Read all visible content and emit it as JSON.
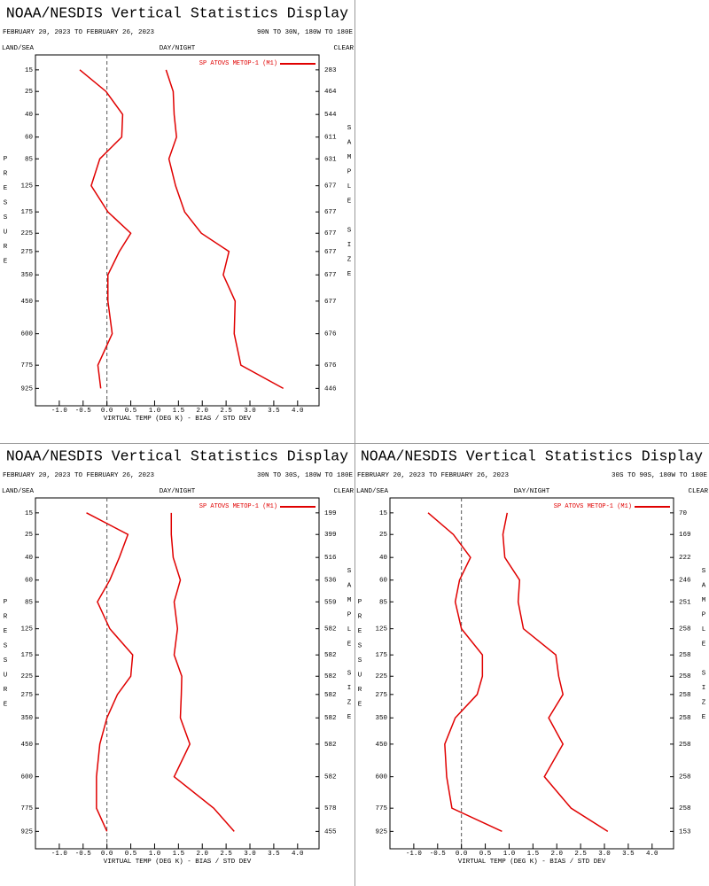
{
  "chart_data": [
    {
      "type": "line",
      "title": "NOAA/NESDIS Vertical Statistics Display",
      "date_range": "FEBRUARY 20, 2023 TO FEBRUARY 26, 2023",
      "region": "90N TO 30N, 180W TO 180E",
      "land_sea": "LAND/SEA",
      "day_night": "DAY/NIGHT",
      "sky": "CLEAR",
      "ylabel": "PRESSURE",
      "y2label": "SAMPLE SIZE",
      "xlabel": "VIRTUAL TEMP (DEG K) - BIAS / STD DEV",
      "y": [
        15,
        25,
        40,
        60,
        85,
        125,
        175,
        225,
        275,
        350,
        450,
        600,
        775,
        925
      ],
      "sample_size": [
        283,
        464,
        544,
        611,
        631,
        677,
        677,
        677,
        677,
        677,
        677,
        676,
        676,
        446
      ],
      "series": [
        {
          "name": "SP ATOVS METOP-1 (M1)",
          "color": "#e00000",
          "bias": [
            -0.57,
            -0.02,
            0.33,
            0.31,
            -0.15,
            -0.33,
            0.02,
            0.5,
            0.26,
            0.02,
            0.02,
            0.11,
            -0.19,
            -0.13
          ],
          "std_dev": [
            1.24,
            1.39,
            1.41,
            1.46,
            1.3,
            1.44,
            1.63,
            1.98,
            2.56,
            2.44,
            2.69,
            2.67,
            2.81,
            3.7
          ]
        }
      ],
      "xlim": [
        -1.5,
        4.45
      ],
      "xticks": [
        {
          "value": -1,
          "label": "-1.0"
        },
        -0.5,
        {
          "value": 0,
          "label": "0.0"
        },
        0.5,
        {
          "value": 1,
          "label": "1.0"
        },
        1.5,
        {
          "value": 2,
          "label": "2.0"
        },
        2.5,
        {
          "value": 3,
          "label": "3.0"
        },
        3.5,
        {
          "value": 4,
          "label": "4.0"
        }
      ],
      "ylim": [
        10,
        1050
      ],
      "yscale": "power",
      "yexponent": 0.3,
      "y_inverted": true
    },
    {
      "type": "line",
      "title": "NOAA/NESDIS Vertical Statistics Display",
      "date_range": "FEBRUARY 20, 2023 TO FEBRUARY 26, 2023",
      "region": "30N TO 30S, 180W TO 180E",
      "land_sea": "LAND/SEA",
      "day_night": "DAY/NIGHT",
      "sky": "CLEAR",
      "ylabel": "PRESSURE",
      "y2label": "SAMPLE SIZE",
      "xlabel": "VIRTUAL TEMP (DEG K) - BIAS / STD DEV",
      "y": [
        15,
        25,
        40,
        60,
        85,
        125,
        175,
        225,
        275,
        350,
        450,
        600,
        775,
        925
      ],
      "sample_size": [
        199,
        399,
        516,
        536,
        559,
        582,
        582,
        582,
        582,
        582,
        582,
        582,
        578,
        455
      ],
      "series": [
        {
          "name": "SP ATOVS METOP-1 (M1)",
          "color": "#e00000",
          "bias": [
            -0.43,
            0.44,
            0.26,
            0.06,
            -0.2,
            0.06,
            0.54,
            0.5,
            0.22,
            0.0,
            -0.15,
            -0.22,
            -0.22,
            0.0
          ],
          "std_dev": [
            1.35,
            1.35,
            1.39,
            1.54,
            1.41,
            1.48,
            1.41,
            1.57,
            1.56,
            1.54,
            1.74,
            1.41,
            2.24,
            2.67
          ]
        }
      ],
      "xlim": [
        -1.5,
        4.45
      ],
      "xticks": [
        {
          "value": -1,
          "label": "-1.0"
        },
        -0.5,
        {
          "value": 0,
          "label": "0.0"
        },
        0.5,
        {
          "value": 1,
          "label": "1.0"
        },
        1.5,
        {
          "value": 2,
          "label": "2.0"
        },
        2.5,
        {
          "value": 3,
          "label": "3.0"
        },
        3.5,
        {
          "value": 4,
          "label": "4.0"
        }
      ],
      "ylim": [
        10,
        1050
      ],
      "yscale": "power",
      "yexponent": 0.3,
      "y_inverted": true
    },
    {
      "type": "line",
      "title": "NOAA/NESDIS Vertical Statistics Display",
      "date_range": "FEBRUARY 20, 2023 TO FEBRUARY 26, 2023",
      "region": "30S TO 90S, 180W TO 180E",
      "land_sea": "LAND/SEA",
      "day_night": "DAY/NIGHT",
      "sky": "CLEAR",
      "ylabel": "PRESSURE",
      "y2label": "SAMPLE SIZE",
      "xlabel": "VIRTUAL TEMP (DEG K) - BIAS / STD DEV",
      "y": [
        15,
        25,
        40,
        60,
        85,
        125,
        175,
        225,
        275,
        350,
        450,
        600,
        775,
        925
      ],
      "sample_size": [
        70,
        169,
        222,
        246,
        251,
        258,
        258,
        258,
        258,
        258,
        258,
        258,
        258,
        153
      ],
      "series": [
        {
          "name": "SP ATOVS METOP-1 (M1)",
          "color": "#e00000",
          "bias": [
            -0.7,
            -0.17,
            0.19,
            -0.04,
            -0.13,
            0.0,
            0.44,
            0.44,
            0.33,
            -0.13,
            -0.35,
            -0.31,
            -0.2,
            0.85
          ],
          "std_dev": [
            0.96,
            0.87,
            0.91,
            1.22,
            1.19,
            1.3,
            1.98,
            2.04,
            2.13,
            1.83,
            2.13,
            1.74,
            2.3,
            3.07
          ]
        }
      ],
      "xlim": [
        -1.5,
        4.45
      ],
      "xticks": [
        {
          "value": -1,
          "label": "-1.0"
        },
        -0.5,
        {
          "value": 0,
          "label": "0.0"
        },
        0.5,
        {
          "value": 1,
          "label": "1.0"
        },
        1.5,
        {
          "value": 2,
          "label": "2.0"
        },
        2.5,
        {
          "value": 3,
          "label": "3.0"
        },
        3.5,
        {
          "value": 4,
          "label": "4.0"
        }
      ],
      "ylim": [
        10,
        1050
      ],
      "yscale": "power",
      "yexponent": 0.3,
      "y_inverted": true
    }
  ]
}
